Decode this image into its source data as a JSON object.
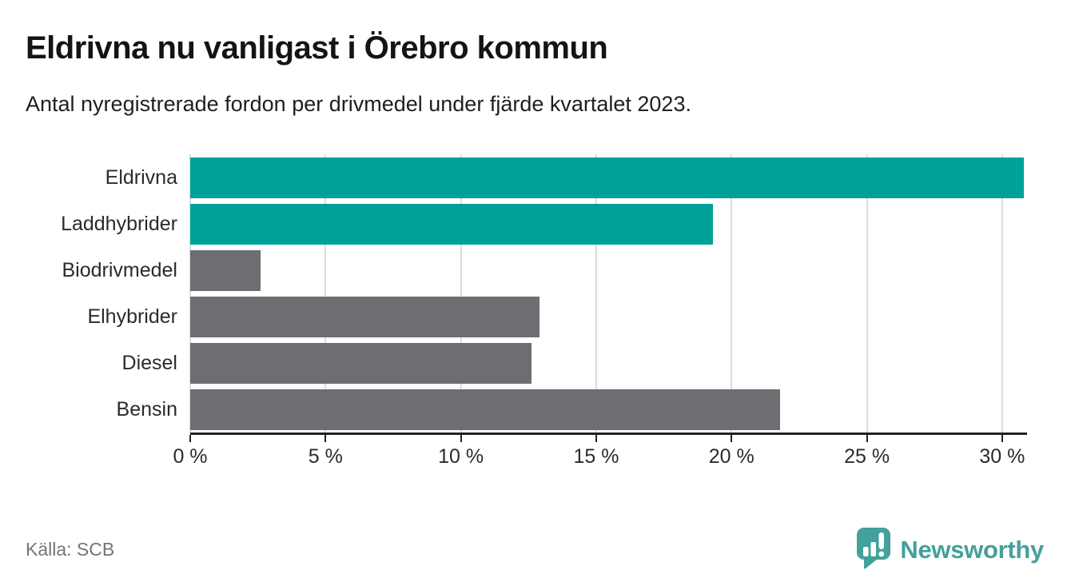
{
  "header": {
    "title": "Eldrivna nu vanligast i Örebro kommun",
    "subtitle": "Antal nyregistrerade fordon per drivmedel under fjärde kvartalet 2023."
  },
  "source": "Källa: SCB",
  "branding": {
    "name": "Newsworthy",
    "logo_icon": "newsworthy-speech-bubble-bar-chart-icon",
    "color": "#44a09b"
  },
  "colors": {
    "highlight_bar": "#00a199",
    "default_bar": "#6d6d72",
    "gridline": "#dcdcdc",
    "axis": "#222222"
  },
  "chart_data": {
    "type": "bar",
    "orientation": "horizontal",
    "title": "Eldrivna nu vanligast i Örebro kommun",
    "subtitle": "Antal nyregistrerade fordon per drivmedel under fjärde kvartalet 2023.",
    "categories": [
      "Eldrivna",
      "Laddhybrider",
      "Biodrivmedel",
      "Elhybrider",
      "Diesel",
      "Bensin"
    ],
    "values": [
      30.8,
      19.3,
      2.6,
      12.9,
      12.6,
      21.8
    ],
    "unit": "%",
    "bar_colors": [
      "#00a199",
      "#00a199",
      "#6d6d72",
      "#6d6d72",
      "#6d6d72",
      "#6d6d72"
    ],
    "xlim": [
      0,
      30.8
    ],
    "x_ticks": [
      0,
      5,
      10,
      15,
      20,
      25,
      30
    ],
    "x_tick_labels": [
      "0 %",
      "5 %",
      "10 %",
      "15 %",
      "20 %",
      "25 %",
      "30 %"
    ],
    "grid": true,
    "legend": false
  }
}
